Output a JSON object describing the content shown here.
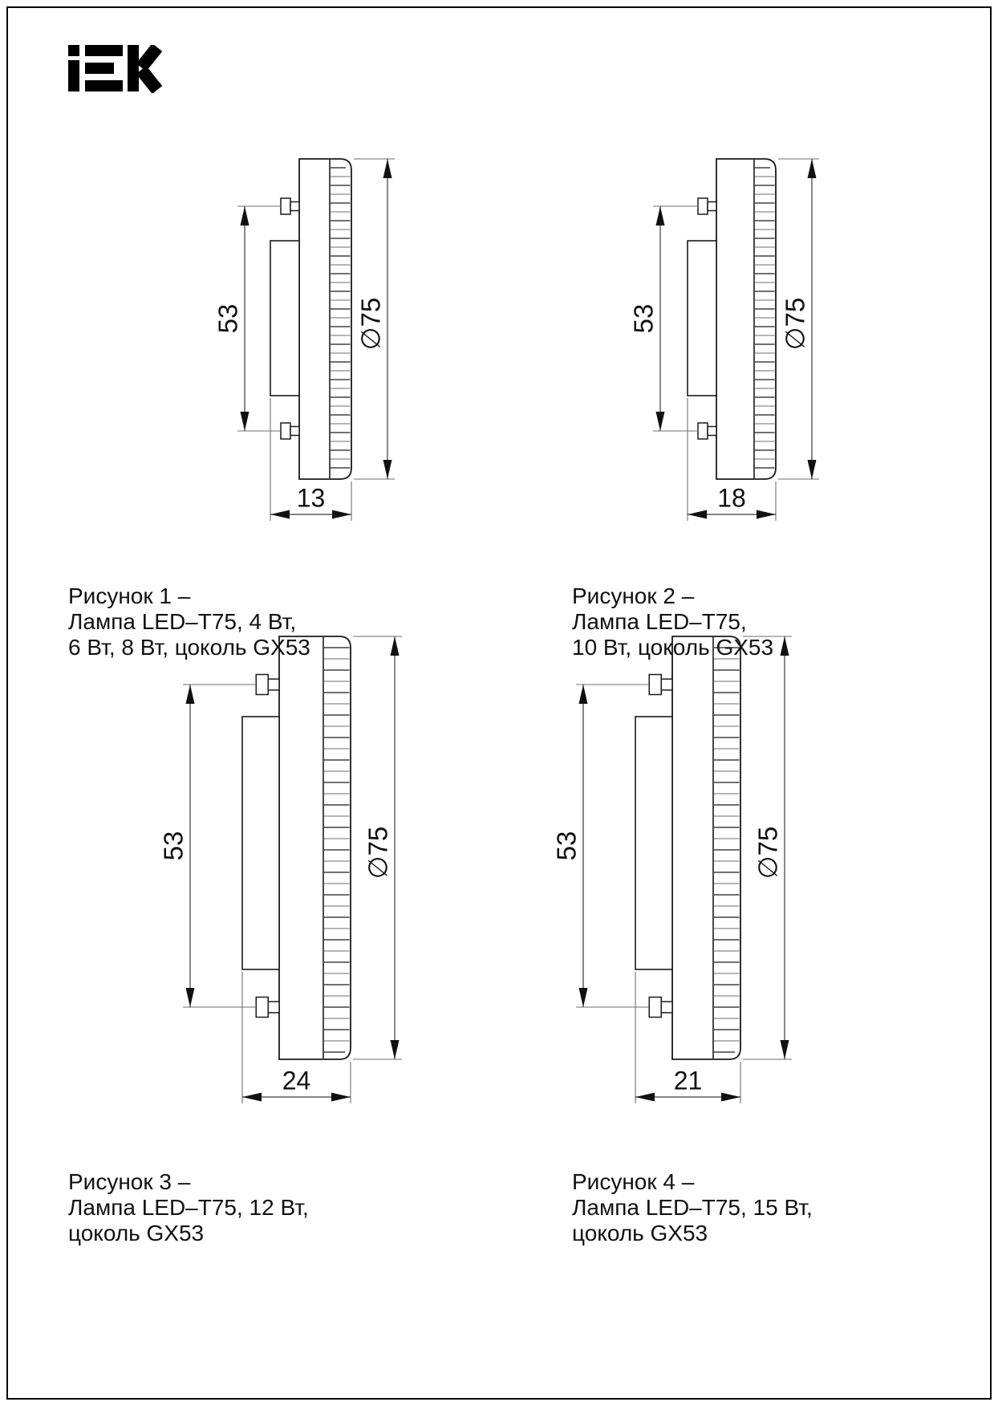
{
  "brand": {
    "name": "IEK",
    "logo_title": "IEK logo"
  },
  "figures": [
    {
      "height_dim": "53",
      "diameter_dim": "∅75",
      "width_dim": "13",
      "caption": [
        "Рисунок 1 –",
        "Лампа LED–T75, 4 Вт,",
        "6 Вт, 8 Вт, цоколь GX53"
      ]
    },
    {
      "height_dim": "53",
      "diameter_dim": "∅75",
      "width_dim": "18",
      "caption": [
        "Рисунок 2 –",
        "Лампа LED–T75,",
        "10 Вт, цоколь GX53"
      ]
    },
    {
      "height_dim": "53",
      "diameter_dim": "∅75",
      "width_dim": "24",
      "caption": [
        "Рисунок 3 –",
        "Лампа LED–T75, 12 Вт,",
        "цоколь GX53"
      ]
    },
    {
      "height_dim": "53",
      "diameter_dim": "∅75",
      "width_dim": "21",
      "caption": [
        "Рисунок 4 –",
        "Лампа LED–T75, 15 Вт,",
        "цоколь GX53"
      ]
    }
  ]
}
